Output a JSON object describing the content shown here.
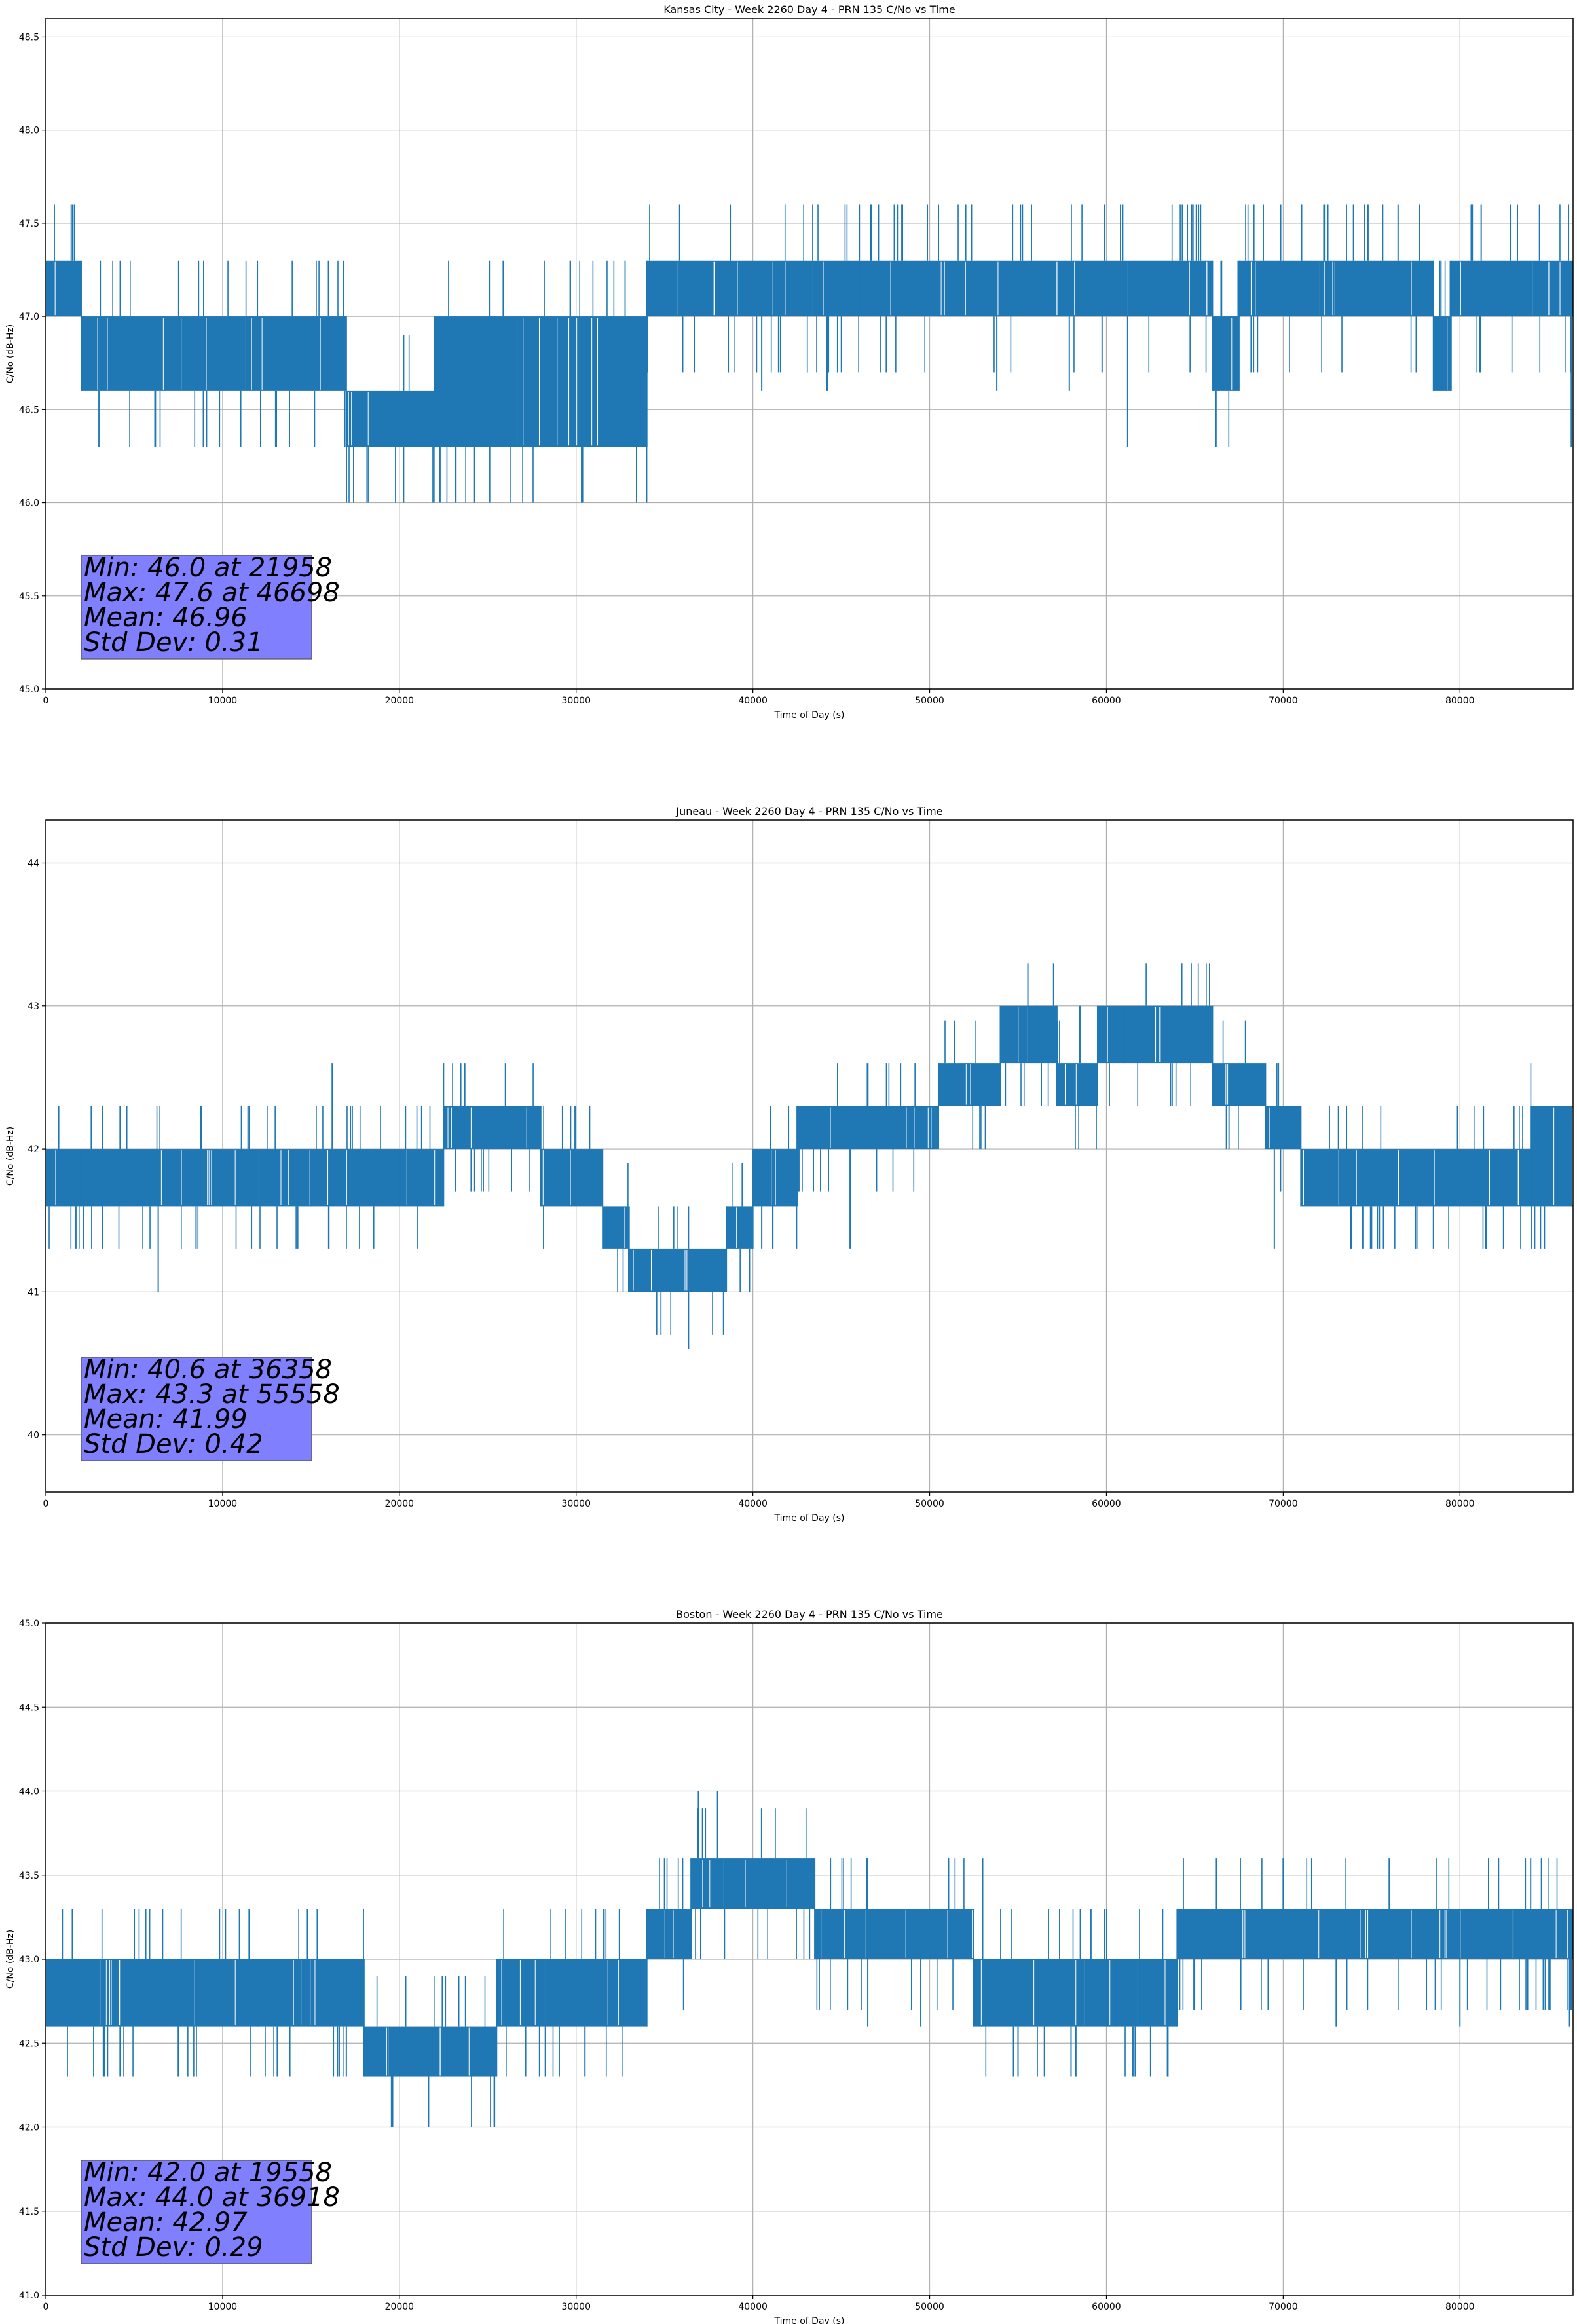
{
  "chart_data": [
    {
      "type": "line",
      "title": "Kansas City - Week 2260 Day 4 - PRN 135 C/No vs Time",
      "xlabel": "Time of Day (s)",
      "ylabel": "C/No (dB-Hz)",
      "xlim": [
        0,
        86400
      ],
      "ylim": [
        45.0,
        48.6
      ],
      "xticks": [
        0,
        10000,
        20000,
        30000,
        40000,
        50000,
        60000,
        70000,
        80000
      ],
      "xtick_labels": [
        "0",
        "10000",
        "20000",
        "30000",
        "40000",
        "50000",
        "60000",
        "70000",
        "80000"
      ],
      "yticks": [
        45.0,
        45.5,
        46.0,
        46.5,
        47.0,
        47.5,
        48.0,
        48.5
      ],
      "ytick_labels": [
        "45.0",
        "45.5",
        "46.0",
        "46.5",
        "47.0",
        "47.5",
        "48.0",
        "48.5"
      ],
      "grid": true,
      "color": "#1f77b4",
      "band_segments": [
        {
          "start": 0,
          "end": 2000,
          "low": 47.0,
          "high": 47.3
        },
        {
          "start": 2000,
          "end": 17000,
          "low": 46.6,
          "high": 47.0
        },
        {
          "start": 17000,
          "end": 22000,
          "low": 46.3,
          "high": 46.6
        },
        {
          "start": 22000,
          "end": 34000,
          "low": 46.3,
          "high": 47.0
        },
        {
          "start": 34000,
          "end": 46000,
          "low": 47.0,
          "high": 47.3
        },
        {
          "start": 46000,
          "end": 66000,
          "low": 47.0,
          "high": 47.3
        },
        {
          "start": 66000,
          "end": 67500,
          "low": 46.6,
          "high": 47.0
        },
        {
          "start": 67500,
          "end": 78500,
          "low": 47.0,
          "high": 47.3
        },
        {
          "start": 78500,
          "end": 79500,
          "low": 46.6,
          "high": 47.0
        },
        {
          "start": 79500,
          "end": 86400,
          "low": 47.0,
          "high": 47.3
        }
      ],
      "spikes": [
        {
          "x": 6200,
          "y": 46.3
        },
        {
          "x": 13000,
          "y": 46.3
        },
        {
          "x": 15200,
          "y": 46.3
        },
        {
          "x": 20800,
          "y": 46.3
        },
        {
          "x": 21958,
          "y": 46.0
        },
        {
          "x": 22300,
          "y": 46.0
        },
        {
          "x": 23200,
          "y": 46.0
        },
        {
          "x": 28000,
          "y": 46.3
        },
        {
          "x": 31500,
          "y": 46.3
        },
        {
          "x": 40500,
          "y": 46.6
        },
        {
          "x": 44200,
          "y": 46.6
        },
        {
          "x": 46698,
          "y": 47.6
        },
        {
          "x": 48000,
          "y": 47.6
        },
        {
          "x": 50500,
          "y": 47.6
        },
        {
          "x": 53800,
          "y": 46.6
        },
        {
          "x": 57900,
          "y": 46.6
        },
        {
          "x": 60800,
          "y": 47.6
        },
        {
          "x": 61200,
          "y": 46.3
        },
        {
          "x": 66200,
          "y": 46.3
        },
        {
          "x": 72300,
          "y": 47.6
        },
        {
          "x": 74800,
          "y": 47.6
        },
        {
          "x": 76500,
          "y": 47.6
        },
        {
          "x": 81200,
          "y": 47.6
        },
        {
          "x": 84500,
          "y": 47.6
        },
        {
          "x": 86300,
          "y": 46.3
        }
      ],
      "stats": {
        "min_line": "Min: 46.0 at 21958",
        "max_line": "Max: 47.6 at 46698",
        "mean_line": "Mean: 46.96",
        "std_line": "Std Dev: 0.31"
      }
    },
    {
      "type": "line",
      "title": "Juneau - Week 2260 Day 4 - PRN 135 C/No vs Time",
      "xlabel": "Time of Day (s)",
      "ylabel": "C/No (dB-Hz)",
      "xlim": [
        0,
        86400
      ],
      "ylim": [
        39.6,
        44.3
      ],
      "xticks": [
        0,
        10000,
        20000,
        30000,
        40000,
        50000,
        60000,
        70000,
        80000
      ],
      "xtick_labels": [
        "0",
        "10000",
        "20000",
        "30000",
        "40000",
        "50000",
        "60000",
        "70000",
        "80000"
      ],
      "yticks": [
        40,
        41,
        42,
        43,
        44
      ],
      "ytick_labels": [
        "40",
        "41",
        "42",
        "43",
        "44"
      ],
      "grid": true,
      "color": "#1f77b4",
      "band_segments": [
        {
          "start": 0,
          "end": 2000,
          "low": 41.6,
          "high": 42.0
        },
        {
          "start": 2000,
          "end": 13000,
          "low": 41.6,
          "high": 42.0
        },
        {
          "start": 13000,
          "end": 20000,
          "low": 41.6,
          "high": 42.0
        },
        {
          "start": 20000,
          "end": 22500,
          "low": 41.6,
          "high": 42.0
        },
        {
          "start": 22500,
          "end": 28000,
          "low": 42.0,
          "high": 42.3
        },
        {
          "start": 28000,
          "end": 31500,
          "low": 41.6,
          "high": 42.0
        },
        {
          "start": 31500,
          "end": 33000,
          "low": 41.3,
          "high": 41.6
        },
        {
          "start": 33000,
          "end": 38500,
          "low": 41.0,
          "high": 41.3
        },
        {
          "start": 38500,
          "end": 40000,
          "low": 41.3,
          "high": 41.6
        },
        {
          "start": 40000,
          "end": 42500,
          "low": 41.6,
          "high": 42.0
        },
        {
          "start": 42500,
          "end": 50500,
          "low": 42.0,
          "high": 42.3
        },
        {
          "start": 50500,
          "end": 54000,
          "low": 42.3,
          "high": 42.6
        },
        {
          "start": 54000,
          "end": 57200,
          "low": 42.6,
          "high": 43.0
        },
        {
          "start": 57200,
          "end": 59500,
          "low": 42.3,
          "high": 42.6
        },
        {
          "start": 59500,
          "end": 66000,
          "low": 42.6,
          "high": 43.0
        },
        {
          "start": 66000,
          "end": 69000,
          "low": 42.3,
          "high": 42.6
        },
        {
          "start": 69000,
          "end": 71000,
          "low": 42.0,
          "high": 42.3
        },
        {
          "start": 71000,
          "end": 84000,
          "low": 41.6,
          "high": 42.0
        },
        {
          "start": 84000,
          "end": 86400,
          "low": 41.6,
          "high": 42.3
        }
      ],
      "spikes": [
        {
          "x": 1700,
          "y": 41.3
        },
        {
          "x": 4200,
          "y": 42.3
        },
        {
          "x": 6358,
          "y": 41.0
        },
        {
          "x": 8500,
          "y": 41.3
        },
        {
          "x": 11500,
          "y": 42.3
        },
        {
          "x": 16000,
          "y": 41.3
        },
        {
          "x": 16200,
          "y": 42.6
        },
        {
          "x": 22500,
          "y": 42.6
        },
        {
          "x": 23700,
          "y": 42.6
        },
        {
          "x": 26000,
          "y": 42.6
        },
        {
          "x": 36358,
          "y": 40.6
        },
        {
          "x": 40500,
          "y": 41.3
        },
        {
          "x": 45500,
          "y": 41.3
        },
        {
          "x": 52000,
          "y": 42.6
        },
        {
          "x": 55558,
          "y": 43.3
        },
        {
          "x": 58500,
          "y": 43.0
        },
        {
          "x": 61000,
          "y": 43.0
        },
        {
          "x": 69500,
          "y": 41.3
        },
        {
          "x": 74500,
          "y": 41.3
        },
        {
          "x": 78500,
          "y": 41.3
        },
        {
          "x": 81500,
          "y": 41.3
        }
      ],
      "stats": {
        "min_line": "Min: 40.6 at 36358",
        "max_line": "Max: 43.3 at 55558",
        "mean_line": "Mean: 41.99",
        "std_line": "Std Dev: 0.42"
      }
    },
    {
      "type": "line",
      "title": "Boston - Week 2260 Day 4 - PRN 135 C/No vs Time",
      "xlabel": "Time of Day (s)",
      "ylabel": "C/No (dB-Hz)",
      "xlim": [
        0,
        86400
      ],
      "ylim": [
        41.0,
        45.0
      ],
      "xticks": [
        0,
        10000,
        20000,
        30000,
        40000,
        50000,
        60000,
        70000,
        80000
      ],
      "xtick_labels": [
        "0",
        "10000",
        "20000",
        "30000",
        "40000",
        "50000",
        "60000",
        "70000",
        "80000"
      ],
      "yticks": [
        41.0,
        41.5,
        42.0,
        42.5,
        43.0,
        43.5,
        44.0,
        44.5,
        45.0
      ],
      "ytick_labels": [
        "41.0",
        "41.5",
        "42.0",
        "42.5",
        "43.0",
        "43.5",
        "44.0",
        "44.5",
        "45.0"
      ],
      "grid": true,
      "color": "#1f77b4",
      "band_segments": [
        {
          "start": 0,
          "end": 12000,
          "low": 42.6,
          "high": 43.0
        },
        {
          "start": 12000,
          "end": 18000,
          "low": 42.6,
          "high": 43.0
        },
        {
          "start": 18000,
          "end": 25500,
          "low": 42.3,
          "high": 42.6
        },
        {
          "start": 25500,
          "end": 34000,
          "low": 42.6,
          "high": 43.0
        },
        {
          "start": 34000,
          "end": 36500,
          "low": 43.0,
          "high": 43.3
        },
        {
          "start": 36500,
          "end": 43500,
          "low": 43.3,
          "high": 43.6
        },
        {
          "start": 43500,
          "end": 50000,
          "low": 43.0,
          "high": 43.3
        },
        {
          "start": 50000,
          "end": 52500,
          "low": 43.0,
          "high": 43.3
        },
        {
          "start": 52500,
          "end": 60500,
          "low": 42.6,
          "high": 43.0
        },
        {
          "start": 60500,
          "end": 64000,
          "low": 42.6,
          "high": 43.0
        },
        {
          "start": 64000,
          "end": 86400,
          "low": 43.0,
          "high": 43.3
        }
      ],
      "spikes": [
        {
          "x": 1500,
          "y": 43.3
        },
        {
          "x": 4200,
          "y": 42.3
        },
        {
          "x": 7500,
          "y": 42.3
        },
        {
          "x": 11500,
          "y": 43.3
        },
        {
          "x": 14800,
          "y": 43.3
        },
        {
          "x": 17000,
          "y": 42.3
        },
        {
          "x": 19558,
          "y": 42.0
        },
        {
          "x": 22500,
          "y": 42.3
        },
        {
          "x": 30500,
          "y": 42.3
        },
        {
          "x": 35000,
          "y": 43.6
        },
        {
          "x": 36918,
          "y": 44.0
        },
        {
          "x": 38000,
          "y": 44.0
        },
        {
          "x": 46500,
          "y": 42.6
        },
        {
          "x": 49500,
          "y": 42.6
        },
        {
          "x": 53000,
          "y": 43.6
        },
        {
          "x": 55000,
          "y": 42.3
        },
        {
          "x": 58000,
          "y": 42.3
        },
        {
          "x": 61500,
          "y": 42.3
        },
        {
          "x": 70000,
          "y": 43.6
        },
        {
          "x": 73000,
          "y": 42.6
        },
        {
          "x": 76000,
          "y": 43.6
        },
        {
          "x": 80000,
          "y": 42.6
        },
        {
          "x": 84000,
          "y": 43.6
        },
        {
          "x": 86200,
          "y": 42.6
        }
      ],
      "stats": {
        "min_line": "Min: 42.0 at 19558",
        "max_line": "Max: 44.0 at 36918",
        "mean_line": "Mean: 42.97",
        "std_line": "Std Dev: 0.29"
      }
    }
  ]
}
